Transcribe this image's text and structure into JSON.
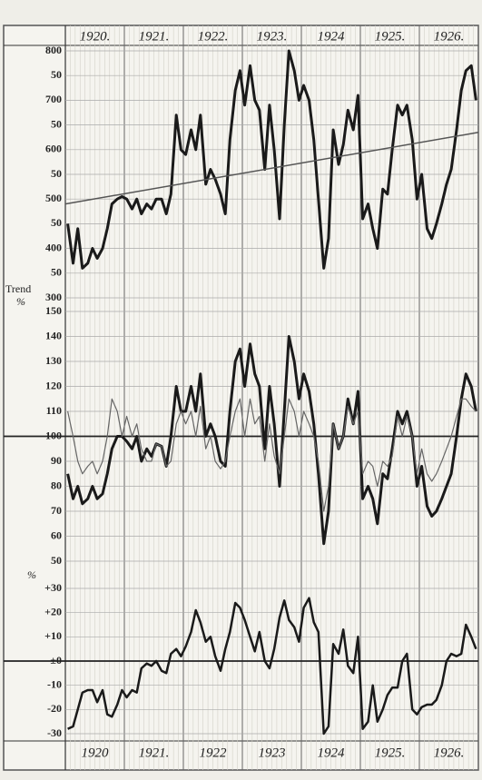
{
  "chart_data": [
    {
      "type": "line",
      "xlim": [
        1920,
        1927
      ],
      "xticks": [
        {
          "value": 1920.5,
          "label": "1920."
        },
        {
          "value": 1921.5,
          "label": "1921."
        },
        {
          "value": 1922.5,
          "label": "1922."
        },
        {
          "value": 1923.5,
          "label": "1923."
        },
        {
          "value": 1924.5,
          "label": "1924"
        },
        {
          "value": 1925.5,
          "label": "1925."
        },
        {
          "value": 1926.5,
          "label": "1926."
        }
      ],
      "ylim": [
        300,
        800
      ],
      "yticks": [
        800,
        {
          "value": 750,
          "label": "50"
        },
        700,
        {
          "value": 650,
          "label": "50"
        },
        600,
        {
          "value": 550,
          "label": "50"
        },
        500,
        {
          "value": 450,
          "label": "50"
        },
        400,
        {
          "value": 350,
          "label": "50"
        },
        300
      ],
      "x": [
        1920.04,
        1920.13,
        1920.21,
        1920.29,
        1920.38,
        1920.46,
        1920.54,
        1920.63,
        1920.71,
        1920.79,
        1920.88,
        1920.96,
        1921.04,
        1921.13,
        1921.21,
        1921.29,
        1921.38,
        1921.46,
        1921.54,
        1921.63,
        1921.71,
        1921.79,
        1921.88,
        1921.96,
        1922.04,
        1922.13,
        1922.21,
        1922.29,
        1922.38,
        1922.46,
        1922.54,
        1922.63,
        1922.71,
        1922.79,
        1922.88,
        1922.96,
        1923.04,
        1923.13,
        1923.21,
        1923.29,
        1923.38,
        1923.46,
        1923.54,
        1923.63,
        1923.71,
        1923.79,
        1923.88,
        1923.96,
        1924.04,
        1924.13,
        1924.21,
        1924.29,
        1924.38,
        1924.46,
        1924.54,
        1924.63,
        1924.71,
        1924.79,
        1924.88,
        1924.96,
        1925.04,
        1925.13,
        1925.21,
        1925.29,
        1925.38,
        1925.46,
        1925.54,
        1925.63,
        1925.71,
        1925.79,
        1925.88,
        1925.96,
        1926.04,
        1926.13,
        1926.21,
        1926.29,
        1926.38,
        1926.46,
        1926.54,
        1926.63,
        1926.71,
        1926.79,
        1926.88,
        1926.96
      ],
      "series": [
        {
          "color": "#1a1a1a",
          "width": 3,
          "values": [
            450,
            370,
            440,
            360,
            370,
            400,
            380,
            400,
            440,
            490,
            500,
            505,
            500,
            480,
            500,
            470,
            490,
            480,
            500,
            500,
            470,
            510,
            670,
            600,
            590,
            640,
            600,
            670,
            530,
            560,
            540,
            510,
            470,
            620,
            720,
            760,
            690,
            770,
            700,
            680,
            560,
            690,
            600,
            460,
            650,
            800,
            760,
            700,
            730,
            700,
            620,
            500,
            360,
            420,
            640,
            570,
            610,
            680,
            640,
            710,
            460,
            490,
            440,
            400,
            520,
            510,
            600,
            690,
            670,
            690,
            620,
            500,
            550,
            440,
            420,
            450,
            490,
            530,
            560,
            640,
            720,
            760,
            770,
            700
          ]
        },
        {
          "color": "#555",
          "width": 1.5,
          "x": [
            1920,
            1927
          ],
          "values": [
            490,
            635
          ]
        }
      ]
    },
    {
      "type": "line",
      "xlim": [
        1920,
        1927
      ],
      "ylabel": "Trend",
      "unit": "%",
      "refline": 100,
      "ylim": [
        50,
        150
      ],
      "yticks": [
        150,
        140,
        130,
        120,
        110,
        100,
        90,
        80,
        70,
        60,
        50
      ],
      "x": [
        1920.04,
        1920.13,
        1920.21,
        1920.29,
        1920.38,
        1920.46,
        1920.54,
        1920.63,
        1920.71,
        1920.79,
        1920.88,
        1920.96,
        1921.04,
        1921.13,
        1921.21,
        1921.29,
        1921.38,
        1921.46,
        1921.54,
        1921.63,
        1921.71,
        1921.79,
        1921.88,
        1921.96,
        1922.04,
        1922.13,
        1922.21,
        1922.29,
        1922.38,
        1922.46,
        1922.54,
        1922.63,
        1922.71,
        1922.79,
        1922.88,
        1922.96,
        1923.04,
        1923.13,
        1923.21,
        1923.29,
        1923.38,
        1923.46,
        1923.54,
        1923.63,
        1923.71,
        1923.79,
        1923.88,
        1923.96,
        1924.04,
        1924.13,
        1924.21,
        1924.29,
        1924.38,
        1924.46,
        1924.54,
        1924.63,
        1924.71,
        1924.79,
        1924.88,
        1924.96,
        1925.04,
        1925.13,
        1925.21,
        1925.29,
        1925.38,
        1925.46,
        1925.54,
        1925.63,
        1925.71,
        1925.79,
        1925.88,
        1925.96,
        1926.04,
        1926.13,
        1926.21,
        1926.29,
        1926.38,
        1926.46,
        1926.54,
        1926.63,
        1926.71,
        1926.79,
        1926.88,
        1926.96
      ],
      "series": [
        {
          "color": "#1a1a1a",
          "width": 3,
          "values": [
            85,
            75,
            80,
            73,
            75,
            80,
            75,
            77,
            85,
            95,
            100,
            100,
            98,
            95,
            100,
            90,
            95,
            92,
            97,
            96,
            88,
            100,
            120,
            110,
            110,
            120,
            110,
            125,
            100,
            105,
            100,
            90,
            88,
            110,
            130,
            135,
            120,
            137,
            125,
            120,
            95,
            120,
            105,
            80,
            110,
            140,
            130,
            115,
            125,
            118,
            105,
            85,
            57,
            70,
            105,
            95,
            100,
            115,
            105,
            118,
            75,
            80,
            75,
            65,
            85,
            83,
            95,
            110,
            105,
            110,
            100,
            80,
            88,
            72,
            68,
            70,
            75,
            80,
            85,
            100,
            115,
            125,
            120,
            110
          ]
        },
        {
          "color": "#666",
          "width": 1.2,
          "values": [
            110,
            100,
            90,
            85,
            88,
            90,
            85,
            90,
            100,
            115,
            110,
            100,
            108,
            100,
            105,
            95,
            90,
            90,
            97,
            96,
            88,
            90,
            105,
            110,
            105,
            110,
            100,
            112,
            95,
            100,
            90,
            87,
            90,
            100,
            110,
            115,
            100,
            115,
            105,
            108,
            90,
            105,
            92,
            85,
            100,
            115,
            110,
            100,
            110,
            105,
            100,
            90,
            70,
            80,
            105,
            95,
            100,
            112,
            105,
            110,
            85,
            90,
            88,
            80,
            90,
            88,
            92,
            108,
            100,
            108,
            100,
            85,
            95,
            85,
            82,
            85,
            90,
            95,
            100,
            108,
            115,
            115,
            112,
            110
          ]
        }
      ]
    },
    {
      "type": "line",
      "xlim": [
        1920,
        1927
      ],
      "unit": "%",
      "refline": 0,
      "xticks": [
        {
          "value": 1920.5,
          "label": "1920"
        },
        {
          "value": 1921.5,
          "label": "1921."
        },
        {
          "value": 1922.5,
          "label": "1922"
        },
        {
          "value": 1923.5,
          "label": "1923"
        },
        {
          "value": 1924.5,
          "label": "1924"
        },
        {
          "value": 1925.5,
          "label": "1925."
        },
        {
          "value": 1926.5,
          "label": "1926."
        }
      ],
      "ylim": [
        -30,
        30
      ],
      "yticks": [
        {
          "value": 30,
          "label": "+30"
        },
        {
          "value": 20,
          "label": "+20"
        },
        {
          "value": 10,
          "label": "+10"
        },
        {
          "value": 0,
          "label": "±0"
        },
        -10,
        -20,
        -30
      ],
      "x": [
        1920.04,
        1920.13,
        1920.21,
        1920.29,
        1920.38,
        1920.46,
        1920.54,
        1920.63,
        1920.71,
        1920.79,
        1920.88,
        1920.96,
        1921.04,
        1921.13,
        1921.21,
        1921.29,
        1921.38,
        1921.46,
        1921.54,
        1921.63,
        1921.71,
        1921.79,
        1921.88,
        1921.96,
        1922.04,
        1922.13,
        1922.21,
        1922.29,
        1922.38,
        1922.46,
        1922.54,
        1922.63,
        1922.71,
        1922.79,
        1922.88,
        1922.96,
        1923.04,
        1923.13,
        1923.21,
        1923.29,
        1923.38,
        1923.46,
        1923.54,
        1923.63,
        1923.71,
        1923.79,
        1923.88,
        1923.96,
        1924.04,
        1924.13,
        1924.21,
        1924.29,
        1924.38,
        1924.46,
        1924.54,
        1924.63,
        1924.71,
        1924.79,
        1924.88,
        1924.96,
        1925.04,
        1925.13,
        1925.21,
        1925.29,
        1925.38,
        1925.46,
        1925.54,
        1925.63,
        1925.71,
        1925.79,
        1925.88,
        1925.96,
        1926.04,
        1926.13,
        1926.21,
        1926.29,
        1926.38,
        1926.46,
        1926.54,
        1926.63,
        1926.71,
        1926.79,
        1926.88,
        1926.96
      ],
      "series": [
        {
          "color": "#1a1a1a",
          "width": 2.5,
          "values": [
            -28,
            -27,
            -20,
            -13,
            -12,
            -12,
            -17,
            -12,
            -22,
            -23,
            -18,
            -12,
            -15,
            -12,
            -13,
            -3,
            -1,
            -2,
            0,
            -4,
            -5,
            3,
            5,
            2,
            6,
            12,
            21,
            16,
            8,
            10,
            2,
            -4,
            5,
            12,
            24,
            22,
            17,
            10,
            4,
            12,
            0,
            -3,
            5,
            18,
            25,
            17,
            14,
            8,
            22,
            26,
            16,
            12,
            -30,
            -27,
            7,
            3,
            13,
            -2,
            -5,
            10,
            -28,
            -25,
            -10,
            -25,
            -20,
            -14,
            -11,
            -11,
            0,
            3,
            -20,
            -22,
            -19,
            -18,
            -18,
            -16,
            -10,
            0,
            3,
            2,
            3,
            15,
            10,
            5
          ]
        }
      ]
    }
  ]
}
